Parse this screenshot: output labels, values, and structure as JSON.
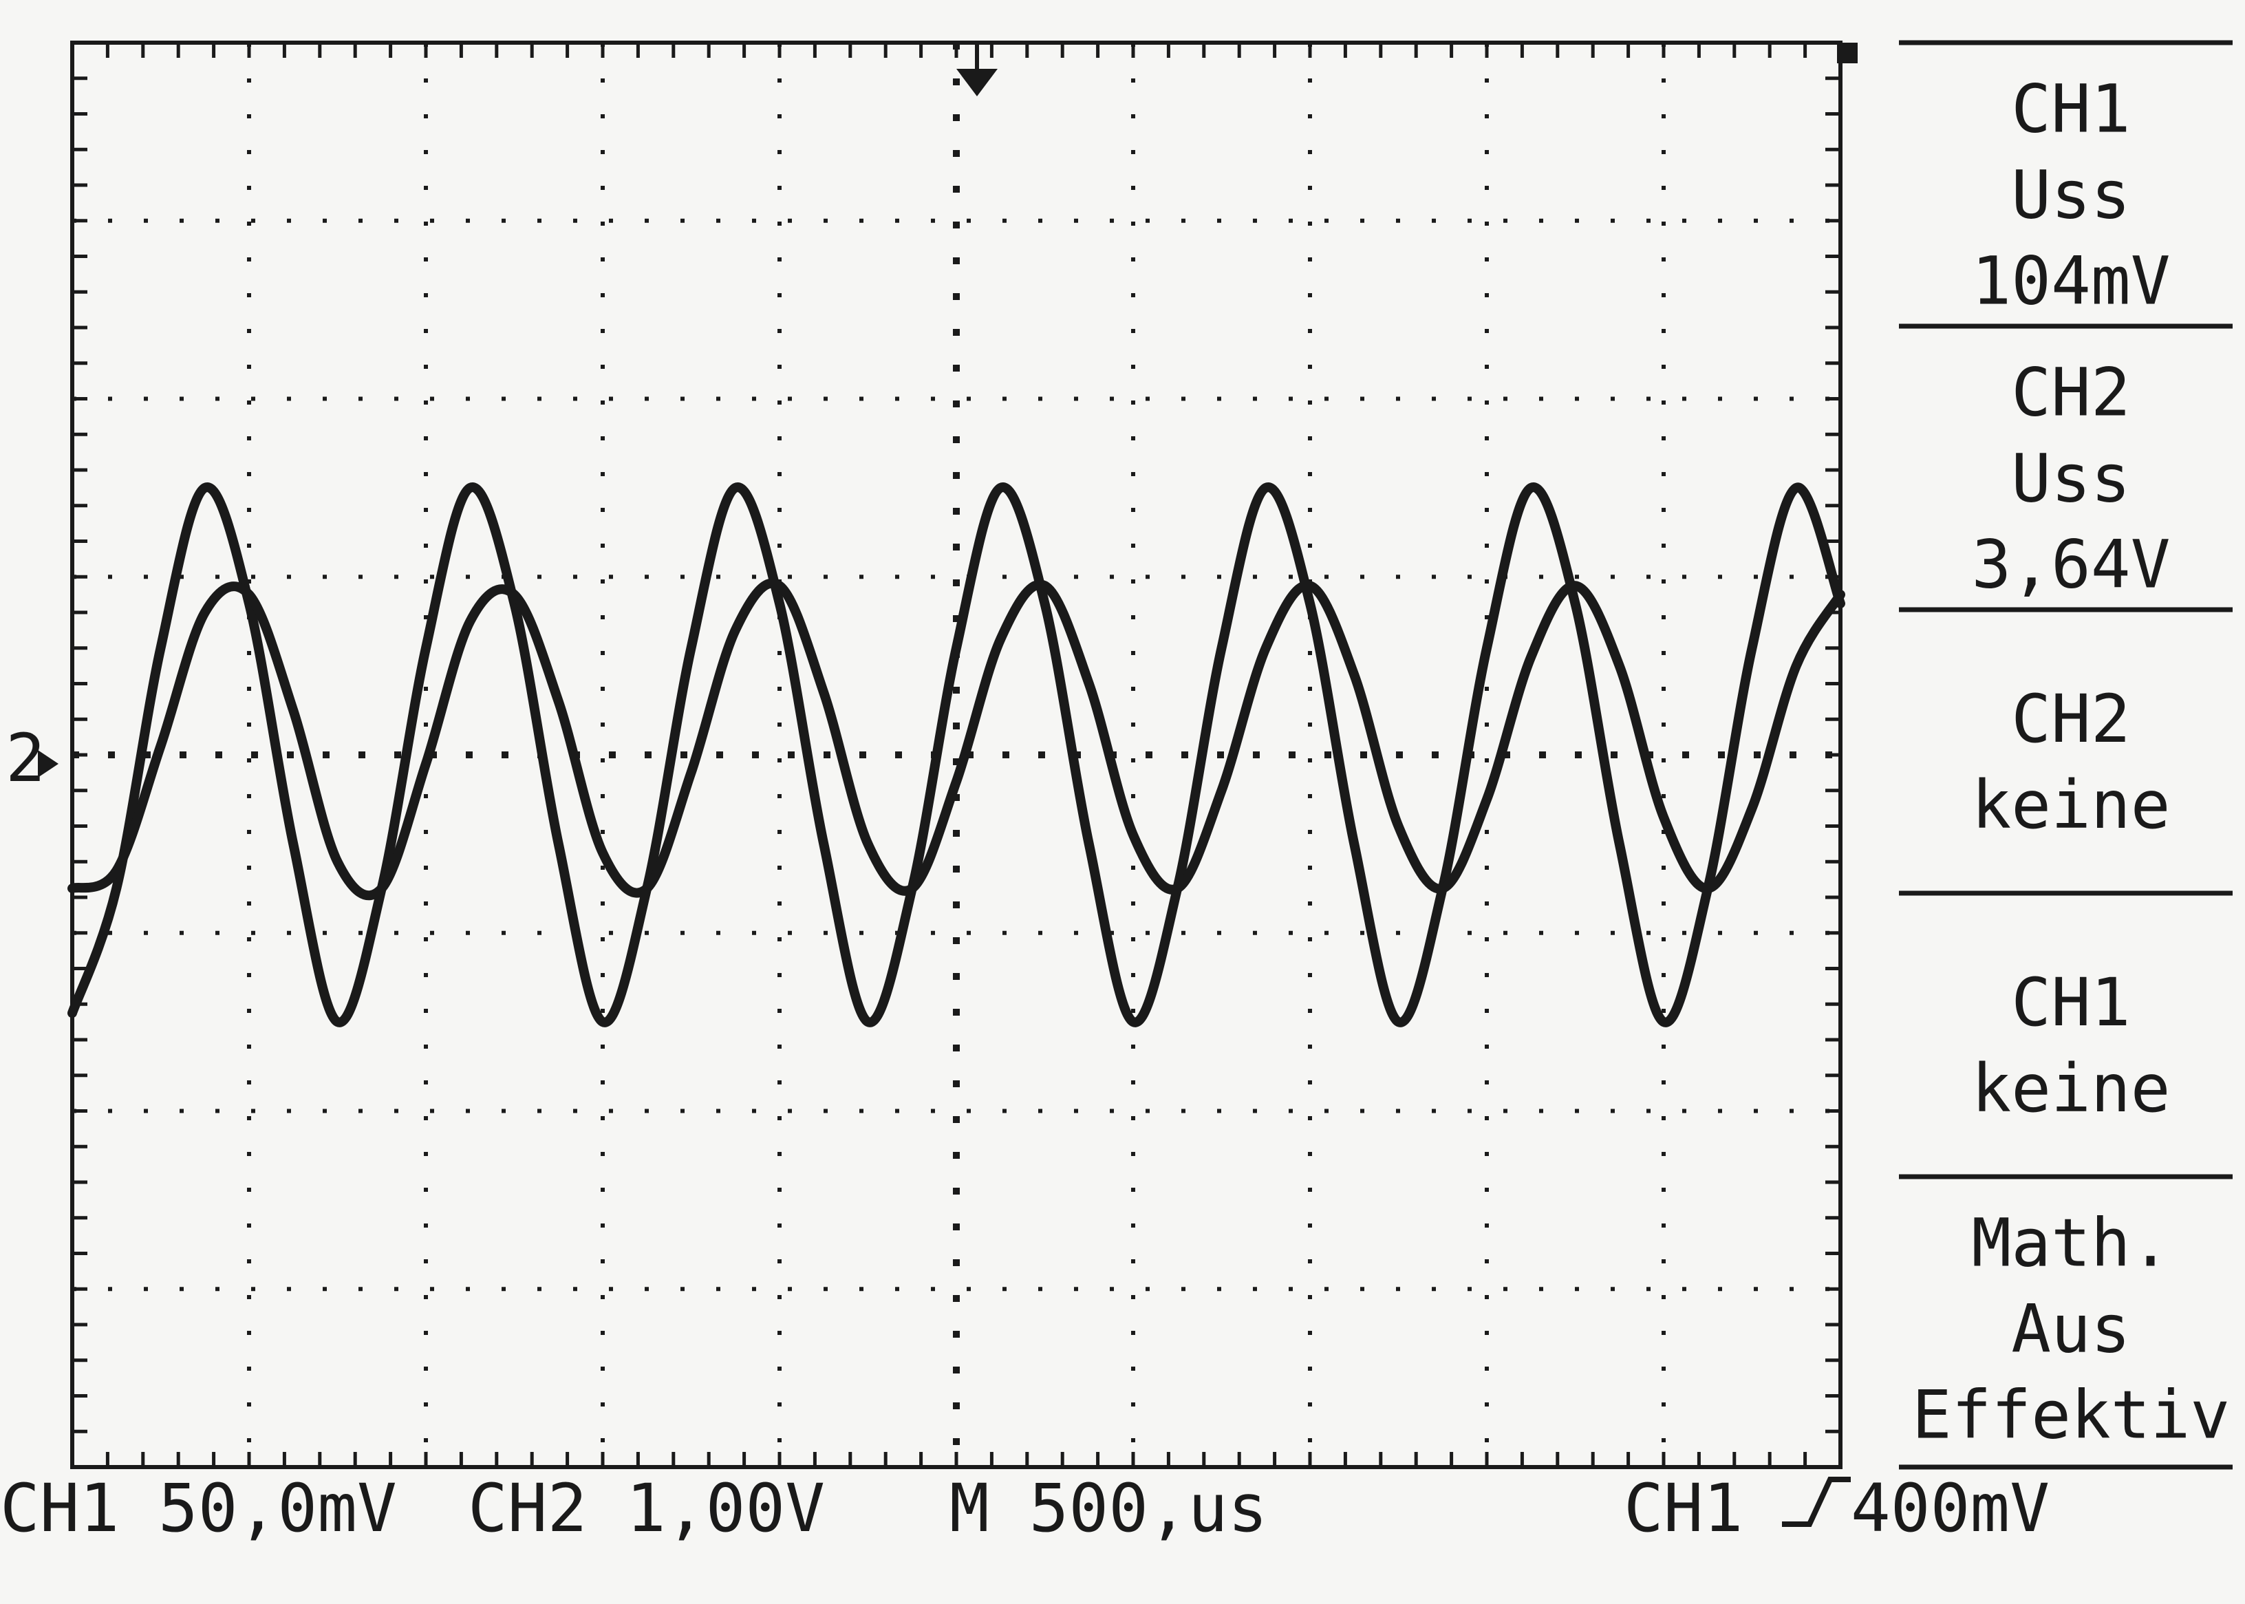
{
  "colors": {
    "background": "#f6f6f4",
    "ink": "#1a1a1a"
  },
  "menu": [
    {
      "lines": [
        "CH1",
        "Uss",
        "104mV"
      ]
    },
    {
      "lines": [
        "CH2",
        "Uss",
        "3,64V"
      ]
    },
    {
      "lines": [
        "CH2",
        "keine"
      ]
    },
    {
      "lines": [
        "CH1",
        "keine"
      ]
    },
    {
      "lines": [
        "Math.",
        "Aus",
        "Effektiv"
      ]
    }
  ],
  "status": {
    "ch1_label": "CH1",
    "ch1_scale": "50,0mV",
    "ch2_label": "CH2",
    "ch2_scale": "1,00V",
    "timebase": "M 500,us",
    "trigger_source": "CH1",
    "trigger_slope_icon": "rising-edge-icon",
    "trigger_level": "400mV"
  },
  "markers": {
    "channel_marker": "2"
  },
  "chart_data": {
    "type": "line",
    "grid": true,
    "xlim": [
      0,
      10
    ],
    "ylim": [
      -4,
      4
    ],
    "series": [
      {
        "name": "CH1",
        "x": [
          0,
          0.25,
          0.5,
          0.75,
          1,
          1.25,
          1.5,
          1.75,
          2,
          2.25,
          2.5,
          2.75,
          3,
          3.25,
          3.5,
          3.75,
          4,
          4.25,
          4.5,
          4.75,
          5,
          5.25,
          5.5,
          5.75,
          6,
          6.25,
          6.5,
          6.75,
          7,
          7.25,
          7.5,
          7.75,
          8,
          8.25,
          8.5,
          8.75,
          9,
          9.25,
          9.5,
          9.75,
          10
        ],
        "y": [
          -1.45,
          -0.75,
          0.6,
          1.5,
          0.85,
          -0.5,
          -1.5,
          -0.75,
          0.6,
          1.5,
          0.85,
          -0.5,
          -1.5,
          -0.75,
          0.6,
          1.5,
          0.85,
          -0.5,
          -1.5,
          -0.75,
          0.6,
          1.5,
          0.85,
          -0.5,
          -1.5,
          -0.75,
          0.6,
          1.5,
          0.85,
          -0.5,
          -1.5,
          -0.75,
          0.6,
          1.5,
          0.85,
          -0.5,
          -1.5,
          -0.75,
          0.6,
          1.5,
          0.85
        ]
      },
      {
        "name": "CH2",
        "x": [
          0,
          0.25,
          0.5,
          0.75,
          1,
          1.25,
          1.5,
          1.75,
          2,
          2.25,
          2.5,
          2.75,
          3,
          3.25,
          3.5,
          3.75,
          4,
          4.25,
          4.5,
          4.75,
          5,
          5.25,
          5.5,
          5.75,
          6,
          6.25,
          6.5,
          6.75,
          7,
          7.25,
          7.5,
          7.75,
          8,
          8.25,
          8.5,
          8.75,
          9,
          9.25,
          9.5,
          9.75,
          10
        ],
        "y": [
          -0.75,
          -0.65,
          0.05,
          0.8,
          0.9,
          0.25,
          -0.6,
          -0.75,
          -0.05,
          0.75,
          0.9,
          0.3,
          -0.55,
          -0.75,
          -0.1,
          0.7,
          0.95,
          0.35,
          -0.5,
          -0.75,
          -0.15,
          0.65,
          0.95,
          0.4,
          -0.45,
          -0.75,
          -0.2,
          0.6,
          0.95,
          0.45,
          -0.4,
          -0.75,
          -0.25,
          0.55,
          0.95,
          0.5,
          -0.35,
          -0.75,
          -0.3,
          0.5,
          0.9
        ]
      }
    ]
  }
}
